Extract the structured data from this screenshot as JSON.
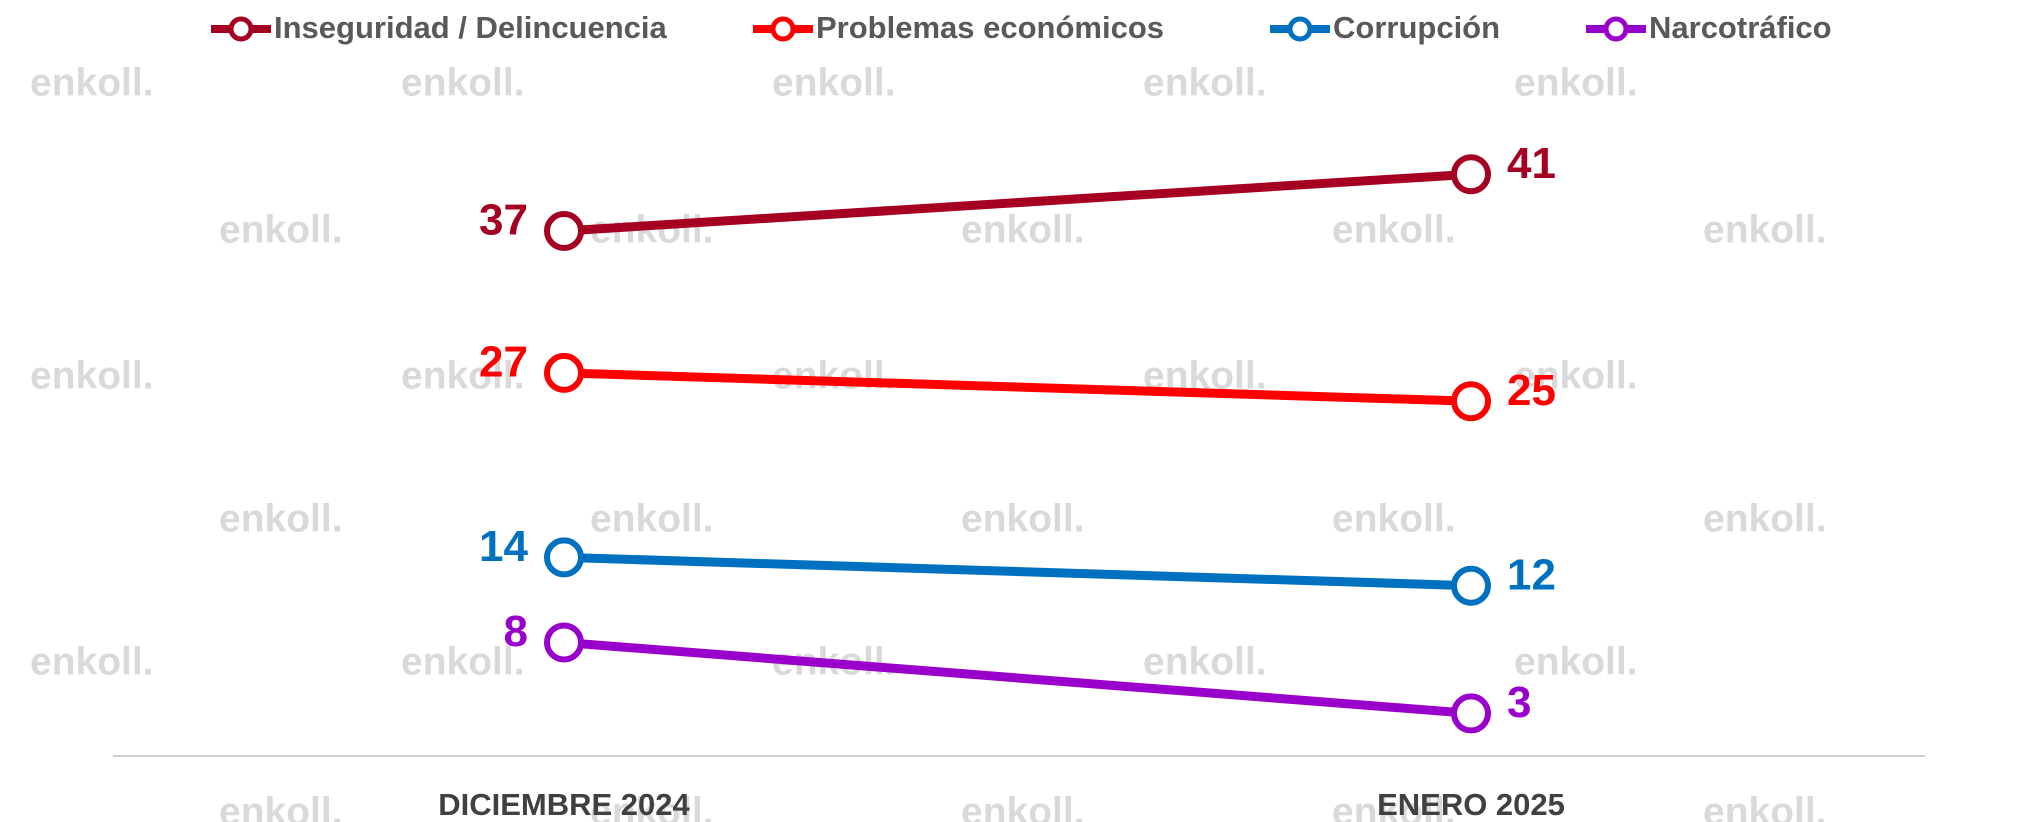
{
  "chart_data": {
    "type": "line",
    "categories": [
      "DICIEMBRE 2024",
      "ENERO 2025"
    ],
    "series": [
      {
        "name": "Inseguridad / Delincuencia",
        "color": "#a50021",
        "values": [
          37,
          41
        ]
      },
      {
        "name": "Problemas económicos",
        "color": "#ff0000",
        "values": [
          27,
          25
        ]
      },
      {
        "name": "Corrupción",
        "color": "#0070c0",
        "values": [
          14,
          12
        ]
      },
      {
        "name": "Narcotráfico",
        "color": "#9900cc",
        "values": [
          8,
          3
        ]
      }
    ],
    "ylim": [
      0,
      50
    ],
    "legend": "top",
    "watermark": "enkoll."
  }
}
